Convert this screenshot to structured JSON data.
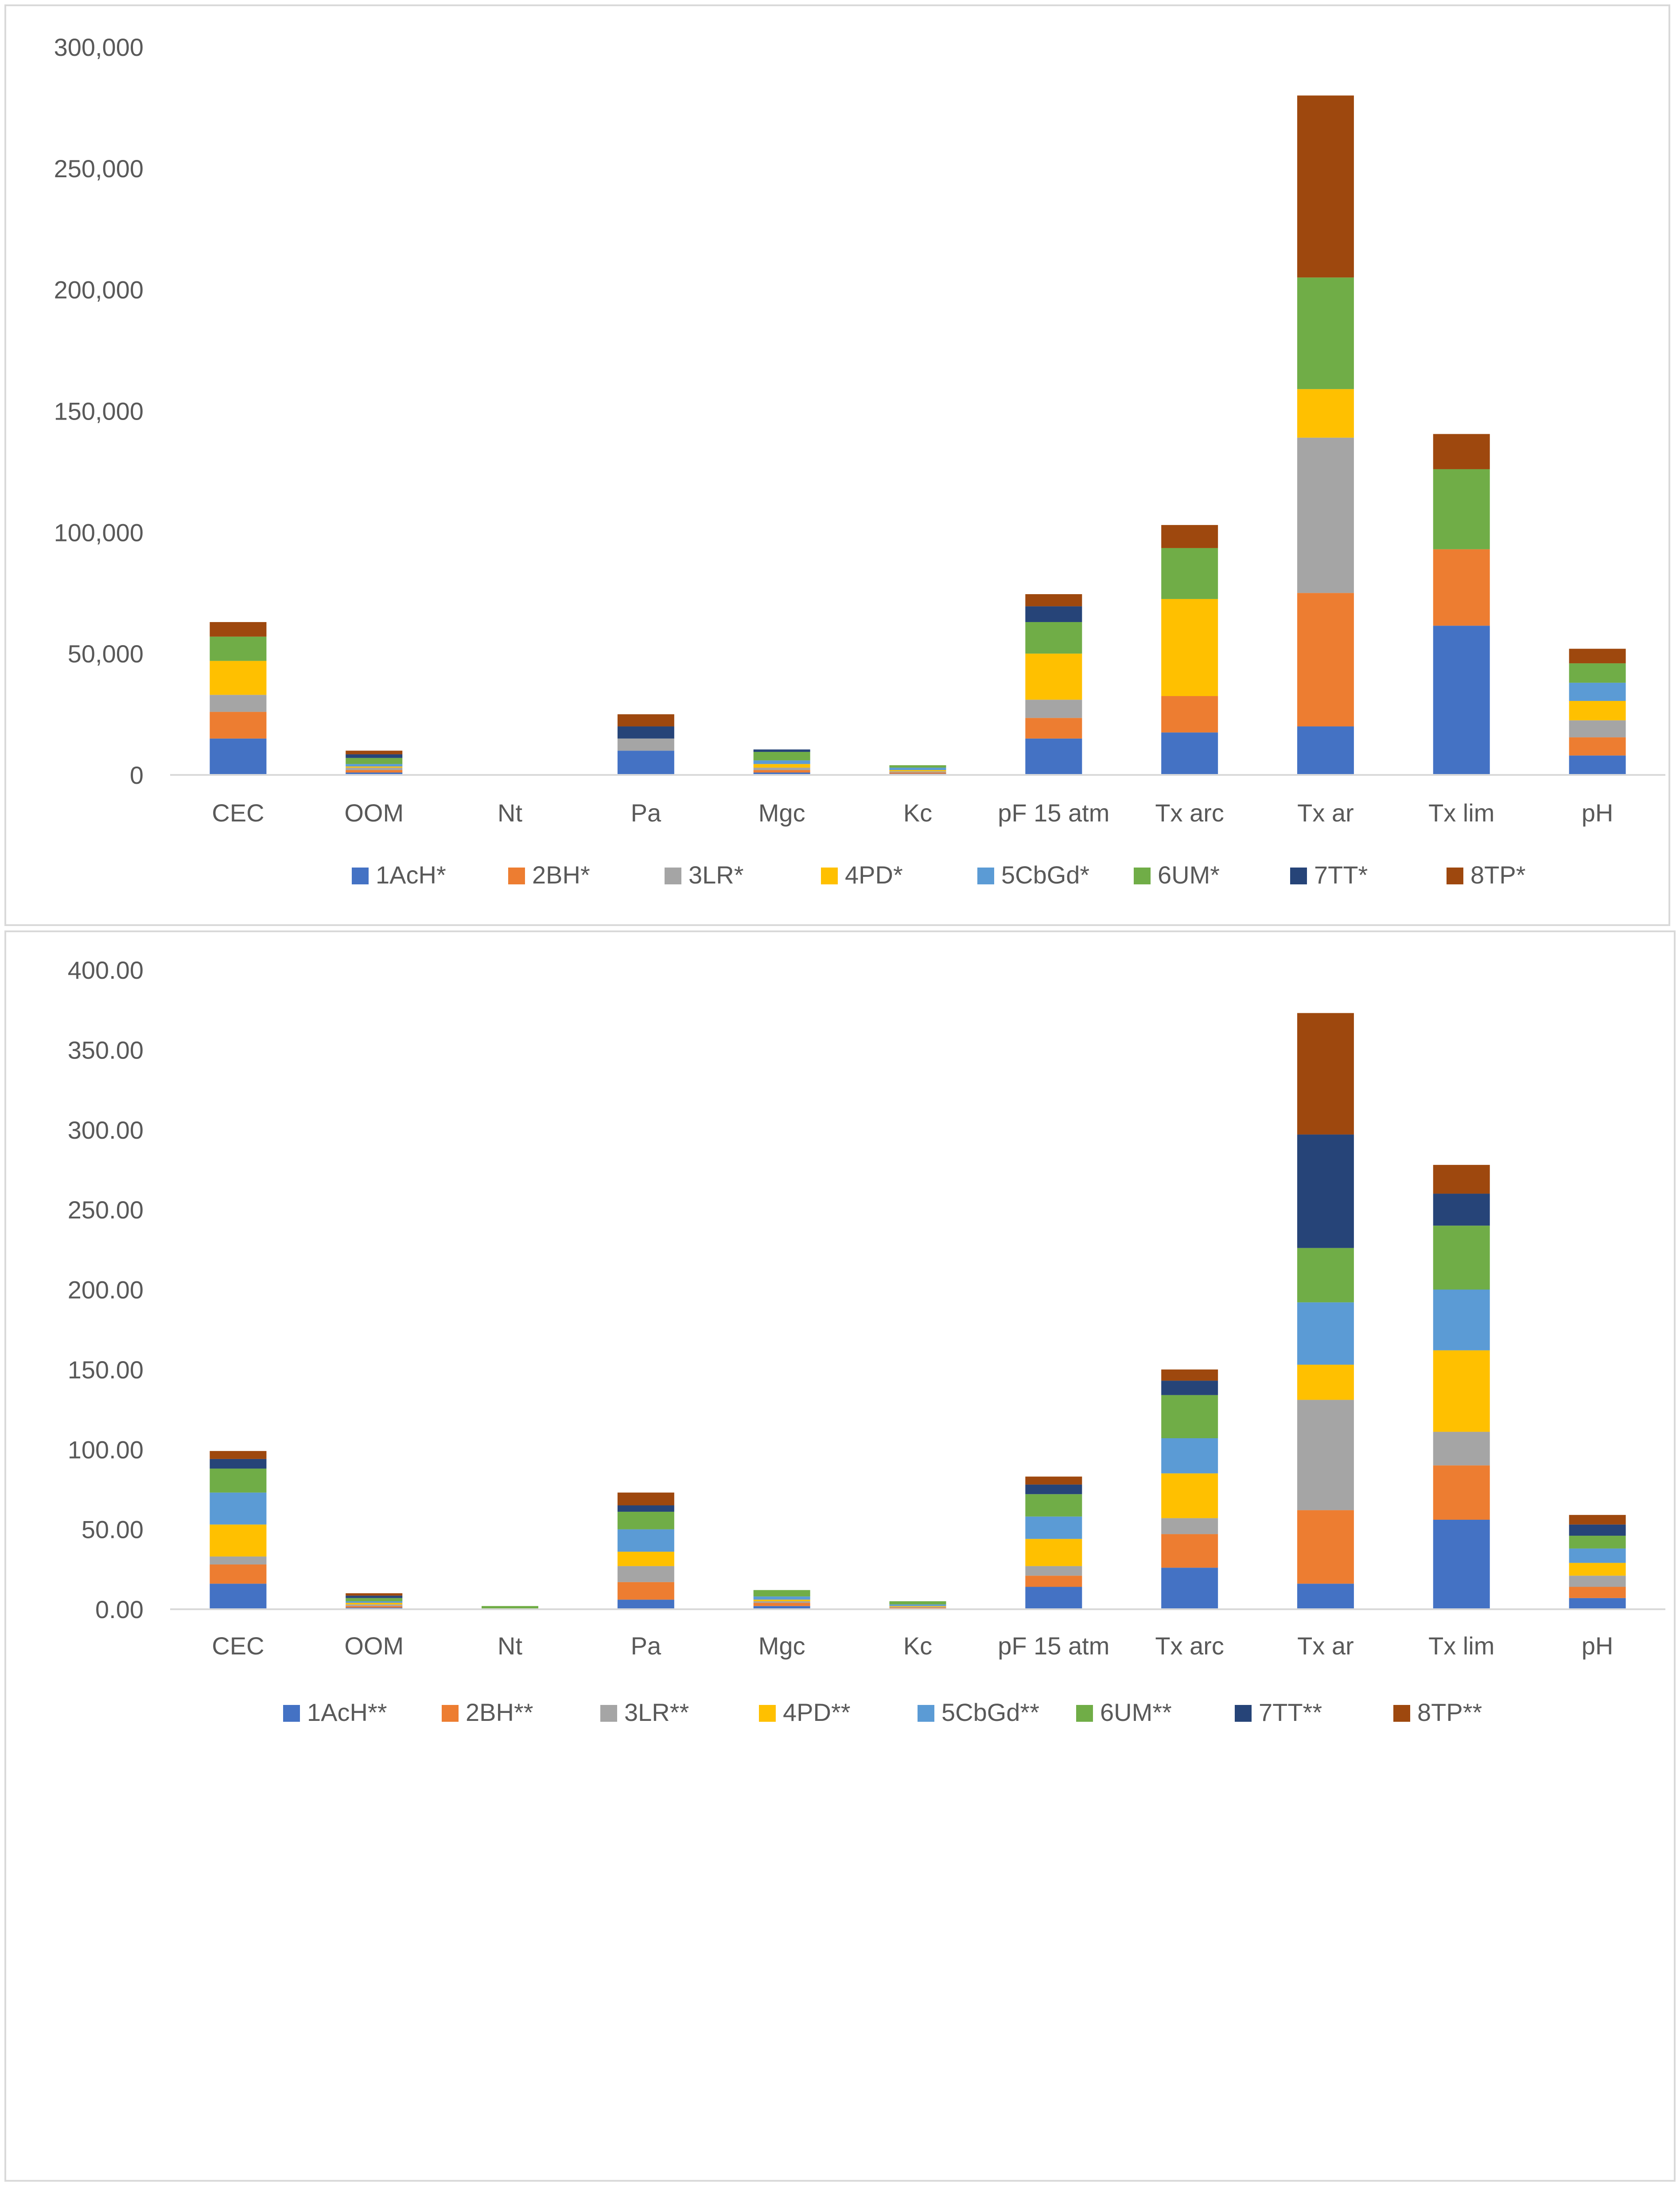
{
  "chart_data": [
    {
      "type": "bar",
      "stacked": true,
      "title": "",
      "xlabel": "",
      "ylabel": "",
      "categories": [
        "CEC",
        "OOM",
        "Nt",
        "Pa",
        "Mgc",
        "Kc",
        "pF 15 atm",
        "Tx arc",
        "Tx ar",
        "Tx lim",
        "pH"
      ],
      "ylim": [
        0,
        300000
      ],
      "yticks": [
        0,
        50000,
        100000,
        150000,
        200000,
        250000,
        300000
      ],
      "ytick_labels": [
        "0",
        "50,000",
        "100,000",
        "150,000",
        "200,000",
        "250,000",
        "300,000"
      ],
      "grid": false,
      "legend_position": "bottom",
      "series": [
        {
          "name": "1AcH*",
          "color": "#4472C4",
          "values": [
            15000,
            1000,
            0,
            10000,
            1000,
            500,
            15000,
            17500,
            20000,
            61500,
            8000
          ]
        },
        {
          "name": "2BH*",
          "color": "#ED7D31",
          "values": [
            11000,
            1000,
            0,
            0,
            1000,
            500,
            8500,
            15000,
            55000,
            31500,
            7500
          ]
        },
        {
          "name": "3LR*",
          "color": "#A5A5A5",
          "values": [
            7000,
            1000,
            0,
            5000,
            1000,
            500,
            7500,
            0,
            64000,
            0,
            7000
          ]
        },
        {
          "name": "4PD*",
          "color": "#FFC000",
          "values": [
            14000,
            500,
            0,
            0,
            1500,
            500,
            19000,
            40000,
            20000,
            0,
            8000
          ]
        },
        {
          "name": "5CbGd*",
          "color": "#5B9BD5",
          "values": [
            0,
            1000,
            0,
            0,
            1500,
            1000,
            0,
            0,
            0,
            0,
            7500
          ]
        },
        {
          "name": "6UM*",
          "color": "#70AD47",
          "values": [
            10000,
            2500,
            0,
            0,
            3500,
            1000,
            13000,
            21000,
            46000,
            33000,
            8000
          ]
        },
        {
          "name": "7TT*",
          "color": "#264478",
          "values": [
            0,
            1500,
            0,
            5000,
            1000,
            0,
            6500,
            0,
            0,
            0,
            0
          ]
        },
        {
          "name": "8TP*",
          "color": "#9E480E",
          "values": [
            6000,
            1500,
            0,
            5000,
            0,
            0,
            5000,
            9500,
            75000,
            14500,
            6000
          ]
        }
      ]
    },
    {
      "type": "bar",
      "stacked": true,
      "title": "",
      "xlabel": "",
      "ylabel": "",
      "categories": [
        "CEC",
        "OOM",
        "Nt",
        "Pa",
        "Mgc",
        "Kc",
        "pF 15 atm",
        "Tx arc",
        "Tx ar",
        "Tx lim",
        "pH"
      ],
      "ylim": [
        0,
        400
      ],
      "yticks": [
        0,
        50,
        100,
        150,
        200,
        250,
        300,
        350,
        400
      ],
      "ytick_labels": [
        "0.00",
        "50.00",
        "100.00",
        "150.00",
        "200.00",
        "250.00",
        "300.00",
        "350.00",
        "400.00"
      ],
      "grid": false,
      "legend_position": "bottom",
      "series": [
        {
          "name": "1AcH**",
          "color": "#4472C4",
          "values": [
            16,
            1,
            0,
            6,
            2,
            0.5,
            14,
            26,
            16,
            56,
            7
          ]
        },
        {
          "name": "2BH**",
          "color": "#ED7D31",
          "values": [
            12,
            1,
            0,
            11,
            2,
            0.5,
            7,
            21,
            46,
            34,
            7
          ]
        },
        {
          "name": "3LR**",
          "color": "#A5A5A5",
          "values": [
            5,
            1,
            0,
            10,
            1,
            0.5,
            6,
            10,
            69,
            21,
            7
          ]
        },
        {
          "name": "4PD**",
          "color": "#FFC000",
          "values": [
            20,
            1,
            0,
            9,
            1,
            0.5,
            17,
            28,
            22,
            51,
            8
          ]
        },
        {
          "name": "5CbGd**",
          "color": "#5B9BD5",
          "values": [
            20,
            1,
            0,
            14,
            2,
            1,
            14,
            22,
            39,
            38,
            9
          ]
        },
        {
          "name": "6UM**",
          "color": "#70AD47",
          "values": [
            15,
            2,
            2,
            11,
            4,
            2,
            14,
            27,
            34,
            40,
            8
          ]
        },
        {
          "name": "7TT**",
          "color": "#264478",
          "values": [
            6,
            1.5,
            0,
            4,
            0,
            0,
            6,
            9,
            71,
            20,
            7
          ]
        },
        {
          "name": "8TP**",
          "color": "#9E480E",
          "values": [
            5,
            1.5,
            0,
            8,
            0,
            0,
            5,
            7,
            76,
            18,
            6
          ]
        }
      ]
    }
  ]
}
